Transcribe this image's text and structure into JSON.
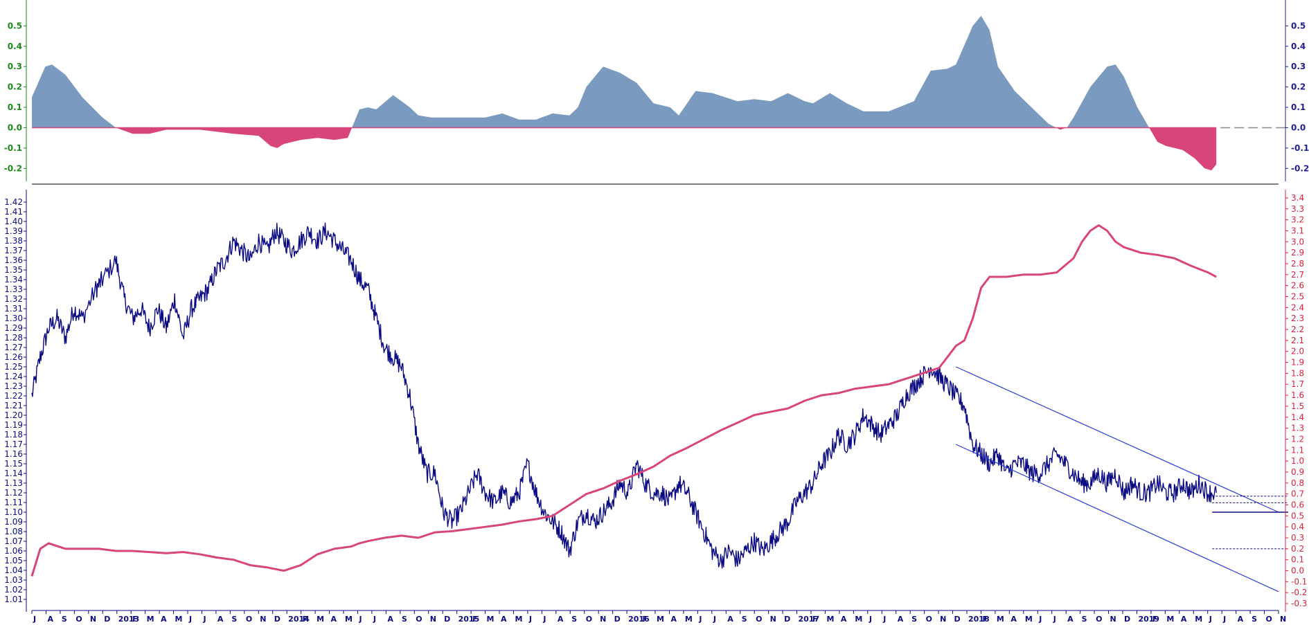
{
  "colors": {
    "background": "#ffffff",
    "price_line": "#0a0a82",
    "ratio_line": "#d8457a",
    "osc_positive": "#7a9bbf",
    "osc_negative": "#d8457a",
    "osc_left_axis": "#1a8a1a",
    "osc_right_axis": "#1f1f8f",
    "price_axis": "#0a0a82",
    "ratio_axis": "#e0203a",
    "channel": "#2a3dd8",
    "divider": "#555555"
  },
  "chart_data": [
    {
      "type": "area",
      "panel": "oscillator",
      "ylim": [
        -0.25,
        0.6
      ],
      "left_ticks": [
        "0.5",
        "0.4",
        "0.3",
        "0.2",
        "0.1",
        "0.0",
        "-0.1",
        "-0.2"
      ],
      "right_ticks": [
        "0.5",
        "0.4",
        "0.3",
        "0.2",
        "0.1",
        "0.0",
        "-0.1",
        "-0.2"
      ],
      "x_range": [
        2012.5,
        2019.92
      ],
      "last_x": 2019.55,
      "x": [
        2012.5,
        2012.58,
        2012.62,
        2012.7,
        2012.8,
        2012.92,
        2013.0,
        2013.1,
        2013.2,
        2013.3,
        2013.5,
        2013.7,
        2013.85,
        2013.92,
        2013.96,
        2014.0,
        2014.1,
        2014.2,
        2014.3,
        2014.38,
        2014.45,
        2014.5,
        2014.55,
        2014.65,
        2014.75,
        2014.8,
        2014.88,
        2015.0,
        2015.2,
        2015.3,
        2015.4,
        2015.5,
        2015.6,
        2015.7,
        2015.75,
        2015.8,
        2015.9,
        2016.0,
        2016.1,
        2016.2,
        2016.3,
        2016.35,
        2016.4,
        2016.45,
        2016.55,
        2016.7,
        2016.8,
        2016.9,
        2017.0,
        2017.1,
        2017.15,
        2017.25,
        2017.35,
        2017.45,
        2017.6,
        2017.75,
        2017.85,
        2017.95,
        2018.0,
        2018.1,
        2018.15,
        2018.2,
        2018.25,
        2018.35,
        2018.45,
        2018.55,
        2018.62,
        2018.66,
        2018.7,
        2018.8,
        2018.9,
        2018.95,
        2019.0,
        2019.08,
        2019.15,
        2019.2,
        2019.25,
        2019.35,
        2019.42,
        2019.48,
        2019.52,
        2019.55
      ],
      "y": [
        0.15,
        0.3,
        0.31,
        0.26,
        0.15,
        0.05,
        0.0,
        -0.03,
        -0.03,
        -0.01,
        -0.01,
        -0.03,
        -0.04,
        -0.09,
        -0.1,
        -0.08,
        -0.06,
        -0.05,
        -0.06,
        -0.05,
        0.09,
        0.1,
        0.09,
        0.16,
        0.1,
        0.06,
        0.05,
        0.05,
        0.05,
        0.07,
        0.04,
        0.04,
        0.07,
        0.06,
        0.1,
        0.2,
        0.3,
        0.27,
        0.22,
        0.12,
        0.1,
        0.06,
        0.12,
        0.18,
        0.17,
        0.13,
        0.14,
        0.13,
        0.17,
        0.13,
        0.12,
        0.17,
        0.12,
        0.08,
        0.08,
        0.13,
        0.28,
        0.29,
        0.31,
        0.5,
        0.55,
        0.48,
        0.3,
        0.18,
        0.1,
        0.02,
        -0.01,
        0.0,
        0.05,
        0.2,
        0.3,
        0.31,
        0.25,
        0.1,
        0.0,
        -0.07,
        -0.09,
        -0.11,
        -0.15,
        -0.2,
        -0.21,
        -0.18
      ]
    },
    {
      "type": "line",
      "panel": "price",
      "series": [
        {
          "axis": "left",
          "x": [
            2012.5,
            2012.55,
            2012.6,
            2012.65,
            2012.7,
            2012.75,
            2012.8,
            2012.88,
            2012.92,
            2013.0,
            2013.05,
            2013.1,
            2013.15,
            2013.2,
            2013.25,
            2013.3,
            2013.35,
            2013.4,
            2013.45,
            2013.5,
            2013.55,
            2013.6,
            2013.65,
            2013.7,
            2013.75,
            2013.8,
            2013.85,
            2013.9,
            2013.95,
            2014.0,
            2014.05,
            2014.1,
            2014.15,
            2014.2,
            2014.25,
            2014.3,
            2014.35,
            2014.4,
            2014.45,
            2014.5,
            2014.55,
            2014.6,
            2014.65,
            2014.7,
            2014.75,
            2014.8,
            2014.85,
            2014.9,
            2014.95,
            2015.0,
            2015.05,
            2015.1,
            2015.15,
            2015.2,
            2015.25,
            2015.3,
            2015.35,
            2015.4,
            2015.45,
            2015.5,
            2015.55,
            2015.6,
            2015.65,
            2015.7,
            2015.75,
            2015.8,
            2015.85,
            2015.9,
            2015.95,
            2016.0,
            2016.05,
            2016.1,
            2016.15,
            2016.2,
            2016.25,
            2016.3,
            2016.35,
            2016.4,
            2016.45,
            2016.5,
            2016.55,
            2016.6,
            2016.65,
            2016.7,
            2016.75,
            2016.8,
            2016.85,
            2016.9,
            2016.95,
            2017.0,
            2017.05,
            2017.1,
            2017.15,
            2017.2,
            2017.25,
            2017.3,
            2017.35,
            2017.4,
            2017.45,
            2017.5,
            2017.55,
            2017.6,
            2017.65,
            2017.7,
            2017.75,
            2017.8,
            2017.85,
            2017.9,
            2017.95,
            2018.0,
            2018.05,
            2018.1,
            2018.15,
            2018.2,
            2018.25,
            2018.3,
            2018.35,
            2018.4,
            2018.45,
            2018.5,
            2018.55,
            2018.6,
            2018.65,
            2018.7,
            2018.75,
            2018.8,
            2018.85,
            2018.9,
            2018.95,
            2019.0,
            2019.05,
            2019.1,
            2019.15,
            2019.2,
            2019.25,
            2019.3,
            2019.35,
            2019.4,
            2019.45,
            2019.5,
            2019.55
          ],
          "y": [
            1.22,
            1.26,
            1.29,
            1.3,
            1.28,
            1.31,
            1.3,
            1.33,
            1.34,
            1.36,
            1.32,
            1.3,
            1.31,
            1.29,
            1.31,
            1.29,
            1.32,
            1.28,
            1.31,
            1.32,
            1.33,
            1.35,
            1.36,
            1.38,
            1.37,
            1.36,
            1.38,
            1.37,
            1.39,
            1.38,
            1.37,
            1.38,
            1.39,
            1.38,
            1.39,
            1.38,
            1.37,
            1.36,
            1.34,
            1.33,
            1.3,
            1.27,
            1.26,
            1.25,
            1.22,
            1.17,
            1.14,
            1.14,
            1.1,
            1.09,
            1.1,
            1.12,
            1.14,
            1.12,
            1.11,
            1.12,
            1.11,
            1.12,
            1.15,
            1.12,
            1.1,
            1.09,
            1.08,
            1.06,
            1.09,
            1.1,
            1.09,
            1.1,
            1.11,
            1.13,
            1.12,
            1.15,
            1.13,
            1.12,
            1.12,
            1.11,
            1.13,
            1.12,
            1.1,
            1.08,
            1.06,
            1.05,
            1.06,
            1.05,
            1.06,
            1.07,
            1.06,
            1.07,
            1.08,
            1.09,
            1.11,
            1.12,
            1.13,
            1.15,
            1.16,
            1.18,
            1.17,
            1.18,
            1.2,
            1.19,
            1.18,
            1.19,
            1.2,
            1.22,
            1.23,
            1.24,
            1.25,
            1.24,
            1.23,
            1.22,
            1.21,
            1.17,
            1.16,
            1.15,
            1.16,
            1.14,
            1.15,
            1.15,
            1.14,
            1.14,
            1.15,
            1.16,
            1.15,
            1.14,
            1.13,
            1.13,
            1.14,
            1.13,
            1.14,
            1.12,
            1.13,
            1.12,
            1.12,
            1.13,
            1.12,
            1.12,
            1.13,
            1.12,
            1.13,
            1.12,
            1.12
          ]
        },
        {
          "axis": "right",
          "x": [
            2012.5,
            2012.55,
            2012.6,
            2012.7,
            2012.8,
            2012.9,
            2013.0,
            2013.1,
            2013.2,
            2013.3,
            2013.4,
            2013.5,
            2013.6,
            2013.7,
            2013.8,
            2013.9,
            2014.0,
            2014.1,
            2014.2,
            2014.3,
            2014.4,
            2014.45,
            2014.5,
            2014.6,
            2014.7,
            2014.8,
            2014.9,
            2015.0,
            2015.1,
            2015.2,
            2015.3,
            2015.4,
            2015.5,
            2015.6,
            2015.7,
            2015.8,
            2015.9,
            2016.0,
            2016.1,
            2016.2,
            2016.3,
            2016.4,
            2016.5,
            2016.6,
            2016.7,
            2016.8,
            2016.9,
            2017.0,
            2017.1,
            2017.2,
            2017.3,
            2017.4,
            2017.5,
            2017.6,
            2017.7,
            2017.8,
            2017.9,
            2018.0,
            2018.05,
            2018.1,
            2018.15,
            2018.2,
            2018.3,
            2018.4,
            2018.5,
            2018.6,
            2018.7,
            2018.75,
            2018.8,
            2018.85,
            2018.9,
            2018.95,
            2019.0,
            2019.1,
            2019.2,
            2019.3,
            2019.4,
            2019.5,
            2019.55
          ],
          "y": [
            -0.05,
            0.2,
            0.25,
            0.2,
            0.2,
            0.2,
            0.18,
            0.18,
            0.17,
            0.16,
            0.17,
            0.15,
            0.12,
            0.1,
            0.05,
            0.03,
            0.0,
            0.05,
            0.15,
            0.2,
            0.22,
            0.25,
            0.27,
            0.3,
            0.32,
            0.3,
            0.35,
            0.36,
            0.38,
            0.4,
            0.42,
            0.45,
            0.47,
            0.5,
            0.6,
            0.7,
            0.75,
            0.82,
            0.88,
            0.95,
            1.05,
            1.12,
            1.2,
            1.28,
            1.35,
            1.42,
            1.45,
            1.48,
            1.55,
            1.6,
            1.62,
            1.66,
            1.68,
            1.7,
            1.75,
            1.8,
            1.85,
            2.05,
            2.1,
            2.3,
            2.58,
            2.68,
            2.68,
            2.7,
            2.7,
            2.72,
            2.85,
            3.0,
            3.1,
            3.15,
            3.1,
            3.0,
            2.95,
            2.9,
            2.88,
            2.85,
            2.78,
            2.72,
            2.68
          ]
        }
      ],
      "channel": [
        {
          "x": [
            2018.0,
            2019.92
          ],
          "y": [
            1.25,
            1.1
          ]
        },
        {
          "x": [
            2018.0,
            2019.92
          ],
          "y": [
            1.17,
            1.018
          ]
        }
      ],
      "levels": [
        {
          "axis": "right",
          "y": 0.68,
          "style": "dashed",
          "x0": 2019.55
        },
        {
          "axis": "right",
          "y": 0.62,
          "style": "dashed",
          "x0": 2019.55
        },
        {
          "axis": "left",
          "y": 1.1,
          "style": "solid",
          "x0": 2019.55
        },
        {
          "axis": "right",
          "y": 0.2,
          "style": "dashed",
          "x0": 2019.55
        }
      ],
      "ylim_left": [
        1.0,
        1.43
      ],
      "ylim_right": [
        -0.35,
        3.45
      ],
      "left_ticks": [
        "1.42",
        "1.41",
        "1.40",
        "1.39",
        "1.38",
        "1.37",
        "1.36",
        "1.35",
        "1.34",
        "1.33",
        "1.32",
        "1.31",
        "1.30",
        "1.29",
        "1.28",
        "1.27",
        "1.26",
        "1.25",
        "1.24",
        "1.23",
        "1.22",
        "1.21",
        "1.20",
        "1.19",
        "1.18",
        "1.17",
        "1.16",
        "1.15",
        "1.14",
        "1.13",
        "1.12",
        "1.11",
        "1.10",
        "1.09",
        "1.08",
        "1.07",
        "1.06",
        "1.05",
        "1.04",
        "1.03",
        "1.02",
        "1.01"
      ],
      "right_ticks": [
        "3.4",
        "3.3",
        "3.2",
        "3.1",
        "3.0",
        "2.9",
        "2.8",
        "2.7",
        "2.6",
        "2.5",
        "2.4",
        "2.3",
        "2.2",
        "2.1",
        "2.0",
        "1.9",
        "1.8",
        "1.7",
        "1.6",
        "1.5",
        "1.4",
        "1.3",
        "1.2",
        "1.1",
        "1.0",
        "0.9",
        "0.8",
        "0.7",
        "0.6",
        "0.5",
        "0.4",
        "0.3",
        "0.2",
        "0.1",
        "0.0",
        "-0.1",
        "-0.2",
        "-0.3"
      ],
      "x_range": [
        2012.5,
        2019.92
      ],
      "x_labels": [
        "J",
        "A",
        "S",
        "O",
        "N",
        "D",
        "2013",
        "F",
        "M",
        "A",
        "M",
        "J",
        "J",
        "A",
        "S",
        "O",
        "N",
        "D",
        "2014",
        "F",
        "M",
        "A",
        "M",
        "J",
        "J",
        "A",
        "S",
        "O",
        "N",
        "D",
        "2015",
        "F",
        "M",
        "A",
        "M",
        "J",
        "J",
        "A",
        "S",
        "O",
        "N",
        "D",
        "2016",
        "F",
        "M",
        "A",
        "M",
        "J",
        "J",
        "A",
        "S",
        "O",
        "N",
        "D",
        "2017",
        "F",
        "M",
        "A",
        "M",
        "J",
        "J",
        "A",
        "S",
        "O",
        "N",
        "D",
        "2018",
        "F",
        "M",
        "A",
        "M",
        "J",
        "J",
        "A",
        "S",
        "O",
        "N",
        "D",
        "2019",
        "F",
        "M",
        "A",
        "M",
        "J",
        "J",
        "A",
        "S",
        "O",
        "N"
      ]
    }
  ]
}
